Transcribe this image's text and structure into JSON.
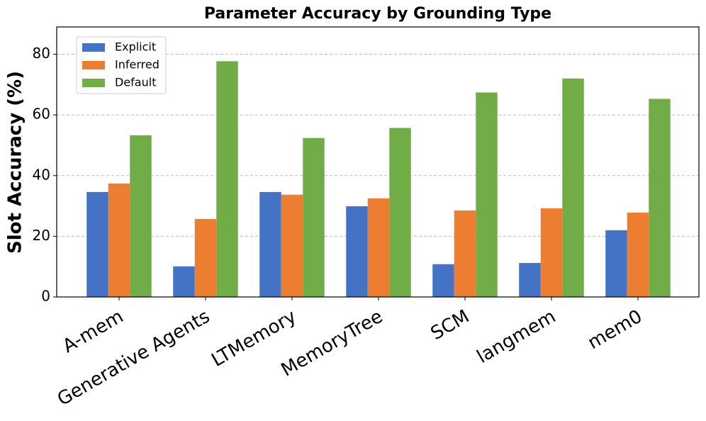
{
  "chart_data": {
    "type": "bar",
    "title": "Parameter Accuracy by Grounding Type",
    "y_label": "Slot Accuracy (%)",
    "categories": [
      "A-mem",
      "Generative Agents",
      "LTMemory",
      "MemoryTree",
      "SCM",
      "langmem",
      "mem0"
    ],
    "series": [
      {
        "name": "Explicit",
        "color": "#4472c4",
        "values": [
          34.6,
          10.1,
          34.6,
          29.9,
          10.8,
          11.2,
          22.0
        ]
      },
      {
        "name": "Inferred",
        "color": "#ed7d31",
        "values": [
          37.4,
          25.7,
          33.7,
          32.5,
          28.5,
          29.2,
          27.8
        ]
      },
      {
        "name": "Default",
        "color": "#70ad47",
        "values": [
          53.3,
          77.7,
          52.4,
          55.7,
          67.4,
          72.0,
          65.3
        ]
      }
    ],
    "ylim": [
      0,
      89
    ],
    "yticks": [
      0,
      20,
      40,
      60,
      80
    ],
    "grid": true,
    "legend": "upper-left"
  }
}
